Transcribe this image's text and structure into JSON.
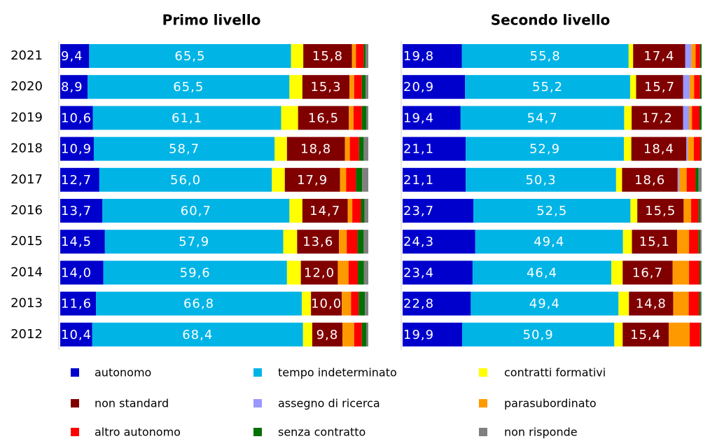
{
  "chart_data": [
    {
      "type": "stacked-bar-horizontal",
      "title": "Primo livello",
      "xlim": [
        0,
        100
      ],
      "categories": [
        "2021",
        "2020",
        "2019",
        "2018",
        "2017",
        "2016",
        "2015",
        "2014",
        "2013",
        "2012"
      ],
      "series": [
        {
          "name": "autonomo",
          "color": "#0000cc",
          "values": [
            9.4,
            8.9,
            10.6,
            10.9,
            12.7,
            13.7,
            14.5,
            14.0,
            11.6,
            10.4
          ],
          "value_labels": [
            "9,4",
            "8,9",
            "10,6",
            "10,9",
            "12,7",
            "13,7",
            "14,5",
            "14,0",
            "11,6",
            "10,4"
          ]
        },
        {
          "name": "tempo indeterminato",
          "color": "#00b4e6",
          "values": [
            65.5,
            65.5,
            61.1,
            58.7,
            56.0,
            60.7,
            57.9,
            59.6,
            66.8,
            68.4
          ],
          "value_labels": [
            "65,5",
            "65,5",
            "61,1",
            "58,7",
            "56,0",
            "60,7",
            "57,9",
            "59,6",
            "66,8",
            "68,4"
          ]
        },
        {
          "name": "contratti formativi",
          "color": "#ffff00",
          "values": [
            4.0,
            4.2,
            5.5,
            4.0,
            4.2,
            4.2,
            4.5,
            4.5,
            3.0,
            3.0
          ]
        },
        {
          "name": "non standard",
          "color": "#800000",
          "values": [
            15.8,
            15.3,
            16.5,
            18.8,
            17.9,
            14.7,
            13.6,
            12.0,
            10.0,
            9.8
          ],
          "value_labels": [
            "15,8",
            "15,3",
            "16,5",
            "18,8",
            "17,9",
            "14,7",
            "13,6",
            "12,0",
            "10,0",
            "9,8"
          ]
        },
        {
          "name": "assegno di ricerca",
          "color": "#9999ff",
          "values": [
            0,
            0,
            0,
            0,
            0,
            0,
            0,
            0,
            0,
            0
          ]
        },
        {
          "name": "parasubordinato",
          "color": "#ff9900",
          "values": [
            1.3,
            1.5,
            1.5,
            1.6,
            2.0,
            1.5,
            2.5,
            3.5,
            3.0,
            3.8
          ]
        },
        {
          "name": "altro autonomo",
          "color": "#ff0000",
          "values": [
            2.5,
            2.5,
            2.7,
            3.0,
            3.2,
            2.8,
            3.5,
            3.0,
            2.5,
            2.5
          ]
        },
        {
          "name": "senza contratto",
          "color": "#007000",
          "values": [
            0.6,
            1.2,
            1.5,
            1.5,
            2.0,
            1.2,
            2.0,
            2.0,
            2.0,
            1.5
          ]
        },
        {
          "name": "non risponde",
          "color": "#808080",
          "values": [
            0.9,
            0.9,
            0.6,
            1.5,
            2.0,
            1.2,
            1.5,
            1.4,
            1.1,
            0.6
          ]
        }
      ]
    },
    {
      "type": "stacked-bar-horizontal",
      "title": "Secondo livello",
      "xlim": [
        0,
        100
      ],
      "categories": [
        "2021",
        "2020",
        "2019",
        "2018",
        "2017",
        "2016",
        "2015",
        "2014",
        "2013",
        "2012"
      ],
      "series": [
        {
          "name": "autonomo",
          "color": "#0000cc",
          "values": [
            19.8,
            20.9,
            19.4,
            21.1,
            21.1,
            23.7,
            24.3,
            23.4,
            22.8,
            19.9
          ],
          "value_labels": [
            "19,8",
            "20,9",
            "19,4",
            "21,1",
            "21,1",
            "23,7",
            "24,3",
            "23,4",
            "22,8",
            "19,9"
          ]
        },
        {
          "name": "tempo indeterminato",
          "color": "#00b4e6",
          "values": [
            55.8,
            55.2,
            54.7,
            52.9,
            50.3,
            52.5,
            49.4,
            46.4,
            49.4,
            50.9
          ],
          "value_labels": [
            "55,8",
            "55,2",
            "54,7",
            "52,9",
            "50,3",
            "52,5",
            "49,4",
            "46,4",
            "49,4",
            "50,9"
          ]
        },
        {
          "name": "contratti formativi",
          "color": "#ffff00",
          "values": [
            1.5,
            2.0,
            2.5,
            2.5,
            2.0,
            2.3,
            3.0,
            3.8,
            3.5,
            2.8
          ]
        },
        {
          "name": "non standard",
          "color": "#800000",
          "values": [
            17.4,
            15.7,
            17.2,
            18.4,
            18.6,
            15.5,
            15.1,
            16.7,
            14.8,
            15.4
          ],
          "value_labels": [
            "17,4",
            "15,7",
            "17,2",
            "18,4",
            "18,6",
            "15,5",
            "15,1",
            "16,7",
            "14,8",
            "15,4"
          ]
        },
        {
          "name": "assegno di ricerca",
          "color": "#9999ff",
          "values": [
            2.0,
            2.2,
            2.0,
            0.5,
            0.5,
            0,
            0,
            0,
            0,
            0
          ]
        },
        {
          "name": "parasubordinato",
          "color": "#ff9900",
          "values": [
            1.5,
            1.5,
            1.0,
            2.0,
            2.5,
            2.5,
            4.0,
            5.5,
            5.2,
            7.0
          ]
        },
        {
          "name": "altro autonomo",
          "color": "#ff0000",
          "values": [
            1.5,
            2.0,
            2.5,
            2.3,
            3.0,
            2.5,
            3.2,
            3.5,
            3.5,
            3.5
          ]
        },
        {
          "name": "senza contratto",
          "color": "#007000",
          "values": [
            0.5,
            0.5,
            0.7,
            0.3,
            1.0,
            0.5,
            0.5,
            0.4,
            0.5,
            0.3
          ]
        },
        {
          "name": "non risponde",
          "color": "#808080",
          "values": [
            0,
            0,
            0,
            0,
            1.0,
            0.5,
            0.5,
            0.3,
            0.3,
            0.2
          ]
        }
      ]
    }
  ]
}
